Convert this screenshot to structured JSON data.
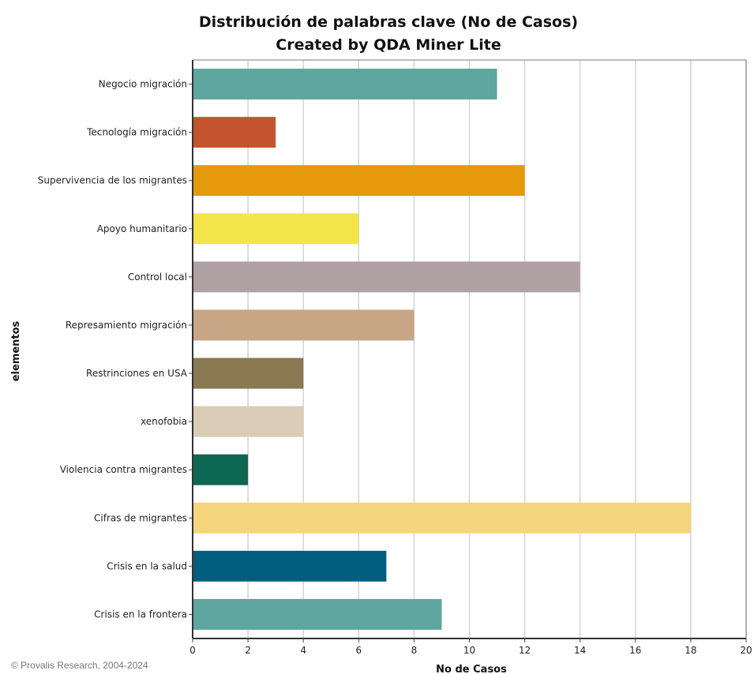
{
  "chart_data": {
    "type": "bar",
    "orientation": "horizontal",
    "title": "Distribución de palabras clave (No de Casos)",
    "subtitle": "Created by QDA Miner Lite",
    "xlabel": "No de Casos",
    "ylabel": "elementos",
    "xlim": [
      0,
      20
    ],
    "xticks": [
      0,
      2,
      4,
      6,
      8,
      10,
      12,
      14,
      16,
      18,
      20
    ],
    "grid": true,
    "categories": [
      "Negocio migración",
      "Tecnología migración",
      "Supervivencia de los migrantes",
      "Apoyo humanitario",
      "Control local",
      "Represamiento migración",
      "Restrinciones en USA",
      "xenofobia",
      "Violencia contra migrantes",
      "Cifras de migrantes",
      "Crisis en la salud",
      "Crisis en la frontera"
    ],
    "values": [
      11,
      3,
      12,
      6,
      14,
      8,
      4,
      4,
      2,
      18,
      7,
      9
    ],
    "colors": [
      "#5fa6a0",
      "#c4542f",
      "#e59a0c",
      "#f3e44a",
      "#b0a1a5",
      "#c8a585",
      "#8a7951",
      "#d9cdb5",
      "#0e6753",
      "#f5d57c",
      "#005e7f",
      "#5fa6a0"
    ]
  },
  "footer": {
    "credit": "© Provalis Research, 2004-2024"
  }
}
